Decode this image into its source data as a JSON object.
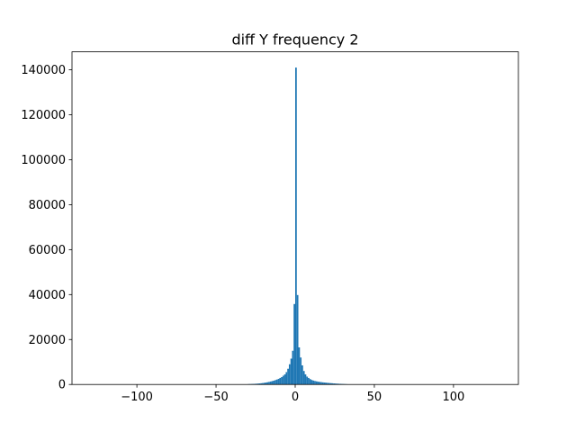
{
  "chart_data": {
    "type": "bar",
    "title": "diff Y frequency 2",
    "xlabel": "",
    "ylabel": "",
    "xlim": [
      -141,
      141
    ],
    "ylim": [
      0,
      148000
    ],
    "xticks": [
      -100,
      -50,
      0,
      50,
      100
    ],
    "xtick_labels": [
      "−100",
      "−50",
      "0",
      "50",
      "100"
    ],
    "yticks": [
      0,
      20000,
      40000,
      60000,
      80000,
      100000,
      120000,
      140000
    ],
    "ytick_labels": [
      "0",
      "20000",
      "40000",
      "60000",
      "80000",
      "100000",
      "120000",
      "140000"
    ],
    "grid": false,
    "legend": "none",
    "bar_color": "#1f77b4",
    "bins": [
      {
        "x0": -30,
        "x1": -29,
        "value": 150
      },
      {
        "x0": -29,
        "x1": -28,
        "value": 180
      },
      {
        "x0": -28,
        "x1": -27,
        "value": 210
      },
      {
        "x0": -27,
        "x1": -26,
        "value": 250
      },
      {
        "x0": -26,
        "x1": -25,
        "value": 290
      },
      {
        "x0": -25,
        "x1": -24,
        "value": 340
      },
      {
        "x0": -24,
        "x1": -23,
        "value": 400
      },
      {
        "x0": -23,
        "x1": -22,
        "value": 470
      },
      {
        "x0": -22,
        "x1": -21,
        "value": 550
      },
      {
        "x0": -21,
        "x1": -20,
        "value": 640
      },
      {
        "x0": -20,
        "x1": -19,
        "value": 740
      },
      {
        "x0": -19,
        "x1": -18,
        "value": 860
      },
      {
        "x0": -18,
        "x1": -17,
        "value": 1000
      },
      {
        "x0": -17,
        "x1": -16,
        "value": 1150
      },
      {
        "x0": -16,
        "x1": -15,
        "value": 1320
      },
      {
        "x0": -15,
        "x1": -14,
        "value": 1500
      },
      {
        "x0": -14,
        "x1": -13,
        "value": 1700
      },
      {
        "x0": -13,
        "x1": -12,
        "value": 1950
      },
      {
        "x0": -12,
        "x1": -11,
        "value": 2200
      },
      {
        "x0": -11,
        "x1": -10,
        "value": 2500
      },
      {
        "x0": -10,
        "x1": -9,
        "value": 2900
      },
      {
        "x0": -9,
        "x1": -8,
        "value": 3300
      },
      {
        "x0": -8,
        "x1": -7,
        "value": 3900
      },
      {
        "x0": -7,
        "x1": -6,
        "value": 4500
      },
      {
        "x0": -6,
        "x1": -5,
        "value": 5500
      },
      {
        "x0": -5,
        "x1": -4,
        "value": 7000
      },
      {
        "x0": -4,
        "x1": -3,
        "value": 9000
      },
      {
        "x0": -3,
        "x1": -2,
        "value": 11500
      },
      {
        "x0": -2,
        "x1": -1,
        "value": 15000
      },
      {
        "x0": -1,
        "x1": 0,
        "value": 35800
      },
      {
        "x0": 0,
        "x1": 1,
        "value": 141000
      },
      {
        "x0": 1,
        "x1": 2,
        "value": 39800
      },
      {
        "x0": 2,
        "x1": 3,
        "value": 16500
      },
      {
        "x0": 3,
        "x1": 4,
        "value": 12000
      },
      {
        "x0": 4,
        "x1": 5,
        "value": 8500
      },
      {
        "x0": 5,
        "x1": 6,
        "value": 6000
      },
      {
        "x0": 6,
        "x1": 7,
        "value": 4500
      },
      {
        "x0": 7,
        "x1": 8,
        "value": 3500
      },
      {
        "x0": 8,
        "x1": 9,
        "value": 2900
      },
      {
        "x0": 9,
        "x1": 10,
        "value": 2400
      },
      {
        "x0": 10,
        "x1": 11,
        "value": 2000
      },
      {
        "x0": 11,
        "x1": 12,
        "value": 1750
      },
      {
        "x0": 12,
        "x1": 13,
        "value": 1550
      },
      {
        "x0": 13,
        "x1": 14,
        "value": 1400
      },
      {
        "x0": 14,
        "x1": 15,
        "value": 1250
      },
      {
        "x0": 15,
        "x1": 16,
        "value": 1150
      },
      {
        "x0": 16,
        "x1": 17,
        "value": 1050
      },
      {
        "x0": 17,
        "x1": 18,
        "value": 950
      },
      {
        "x0": 18,
        "x1": 19,
        "value": 870
      },
      {
        "x0": 19,
        "x1": 20,
        "value": 800
      },
      {
        "x0": 20,
        "x1": 21,
        "value": 730
      },
      {
        "x0": 21,
        "x1": 22,
        "value": 660
      },
      {
        "x0": 22,
        "x1": 23,
        "value": 600
      },
      {
        "x0": 23,
        "x1": 24,
        "value": 540
      },
      {
        "x0": 24,
        "x1": 25,
        "value": 480
      },
      {
        "x0": 25,
        "x1": 26,
        "value": 420
      },
      {
        "x0": 26,
        "x1": 27,
        "value": 370
      },
      {
        "x0": 27,
        "x1": 28,
        "value": 320
      },
      {
        "x0": 28,
        "x1": 29,
        "value": 280
      },
      {
        "x0": 29,
        "x1": 30,
        "value": 240
      },
      {
        "x0": 30,
        "x1": 31,
        "value": 200
      },
      {
        "x0": 31,
        "x1": 32,
        "value": 160
      },
      {
        "x0": 32,
        "x1": 33,
        "value": 120
      }
    ]
  }
}
